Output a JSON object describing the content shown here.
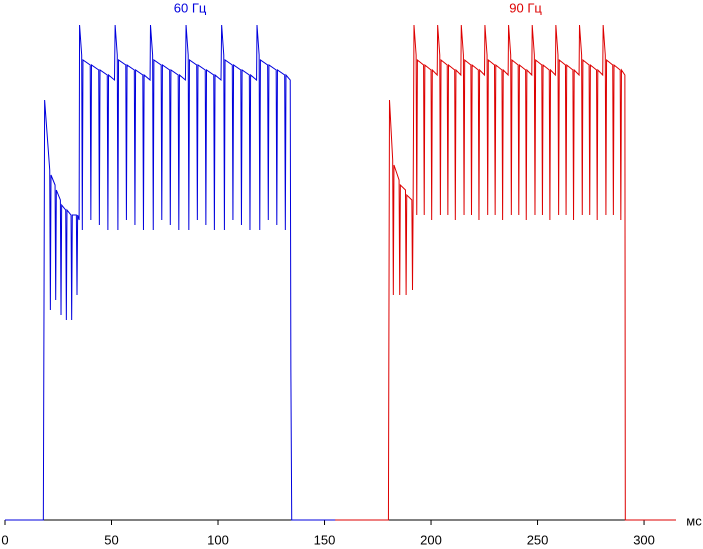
{
  "chart_data": {
    "type": "line",
    "x_label": "мс",
    "xlim": [
      0,
      315
    ],
    "xticks": [
      0,
      50,
      100,
      150,
      200,
      250,
      300
    ],
    "ylim": [
      0,
      100
    ],
    "series": [
      {
        "name": "60 Гц",
        "color": "#0000dd",
        "x": [
          0,
          18,
          18.6,
          21,
          21.3,
          21.6,
          23.5,
          23.8,
          24.1,
          26,
          26.3,
          26.6,
          28.5,
          28.8,
          29.1,
          31,
          31.3,
          31.6,
          33.5,
          33.8,
          34.1,
          34.8,
          35,
          36,
          36.3,
          36.6,
          40,
          40.3,
          40.6,
          44,
          44.3,
          44.6,
          48,
          48.3,
          48.6,
          51.4,
          51.7,
          52.7,
          53,
          53.3,
          56.7,
          57,
          57.3,
          60.7,
          61,
          61.3,
          64.7,
          65,
          65.3,
          68.1,
          68.3,
          69.3,
          69.6,
          69.9,
          73.3,
          73.6,
          73.9,
          77.3,
          77.6,
          77.9,
          81.3,
          81.6,
          81.9,
          84.7,
          85,
          86,
          86.3,
          86.6,
          90,
          90.3,
          90.6,
          94,
          94.3,
          94.6,
          98,
          98.3,
          98.6,
          101.4,
          101.7,
          102.7,
          103,
          103.3,
          106.7,
          107,
          107.3,
          110.7,
          111,
          111.3,
          114.7,
          115,
          115.3,
          118.1,
          118.3,
          119.3,
          119.6,
          119.9,
          123.3,
          123.6,
          123.9,
          127.3,
          127.6,
          127.9,
          131.3,
          131.6,
          131.9,
          133.9,
          134.2,
          134.6,
          155
        ],
        "values": [
          0,
          0,
          84,
          70,
          42,
          69,
          67,
          44,
          66,
          64,
          41,
          63,
          62,
          40,
          62,
          61,
          40,
          61,
          61,
          45,
          61,
          60,
          99,
          93,
          58,
          92,
          91,
          60,
          91,
          90,
          59,
          90,
          89,
          58,
          89,
          88,
          99,
          93,
          58,
          92,
          91,
          60,
          91,
          90,
          59,
          90,
          89,
          58,
          89,
          88,
          99,
          93,
          58,
          92,
          91,
          60,
          91,
          90,
          59,
          90,
          89,
          58,
          89,
          88,
          99,
          93,
          58,
          92,
          91,
          60,
          91,
          90,
          59,
          90,
          89,
          58,
          89,
          88,
          99,
          93,
          58,
          92,
          91,
          60,
          91,
          90,
          59,
          90,
          89,
          58,
          89,
          88,
          99,
          93,
          58,
          92,
          91,
          60,
          91,
          90,
          59,
          90,
          89,
          58,
          89,
          88,
          30,
          0,
          0
        ]
      },
      {
        "name": "90 Гц",
        "color": "#dd0000",
        "x": [
          155,
          180,
          180.5,
          182,
          182.3,
          182.6,
          185,
          185.3,
          185.6,
          188,
          188.3,
          188.6,
          191,
          191.3,
          191.6,
          192,
          193,
          193.3,
          193.6,
          196.5,
          196.8,
          197.1,
          200,
          200.3,
          200.6,
          202.9,
          203.1,
          204.1,
          204.4,
          204.7,
          207.6,
          207.9,
          208.2,
          211.1,
          211.4,
          211.7,
          214,
          214.2,
          215.2,
          215.5,
          215.8,
          218.7,
          219,
          219.3,
          222.2,
          222.5,
          222.8,
          225.1,
          225.3,
          226.3,
          226.6,
          226.9,
          229.8,
          230.1,
          230.4,
          233.3,
          233.6,
          233.9,
          236.2,
          236.4,
          237.4,
          237.7,
          238,
          240.9,
          241.2,
          241.5,
          244.4,
          244.7,
          245,
          247.3,
          247.5,
          248.5,
          248.8,
          249.1,
          252,
          252.3,
          252.6,
          255.5,
          255.8,
          256.1,
          258.4,
          258.6,
          259.6,
          259.9,
          260.2,
          263.1,
          263.4,
          263.7,
          266.6,
          266.9,
          267.2,
          269.5,
          269.7,
          270.7,
          271,
          271.3,
          274.2,
          274.5,
          274.8,
          277.7,
          278,
          278.3,
          280.6,
          280.8,
          281.8,
          282.1,
          282.4,
          285.3,
          285.6,
          285.9,
          288.8,
          289.1,
          289.4,
          291,
          291.2,
          315
        ],
        "values": [
          0,
          0,
          84,
          72,
          45,
          71,
          68,
          45,
          67,
          66,
          45,
          65,
          64,
          46,
          64,
          99,
          93,
          61,
          92,
          91,
          61,
          91,
          90,
          60,
          90,
          89,
          99,
          93,
          61,
          92,
          91,
          61,
          91,
          90,
          60,
          90,
          89,
          99,
          93,
          61,
          92,
          91,
          61,
          91,
          90,
          60,
          90,
          89,
          99,
          93,
          61,
          92,
          91,
          61,
          91,
          90,
          60,
          90,
          89,
          99,
          93,
          61,
          92,
          91,
          61,
          91,
          90,
          60,
          90,
          89,
          99,
          93,
          61,
          92,
          91,
          61,
          91,
          90,
          60,
          90,
          89,
          99,
          93,
          61,
          92,
          91,
          61,
          91,
          90,
          60,
          90,
          89,
          99,
          93,
          61,
          92,
          91,
          61,
          91,
          90,
          60,
          90,
          89,
          99,
          93,
          61,
          92,
          91,
          61,
          91,
          90,
          60,
          90,
          89,
          0,
          0
        ]
      }
    ]
  }
}
